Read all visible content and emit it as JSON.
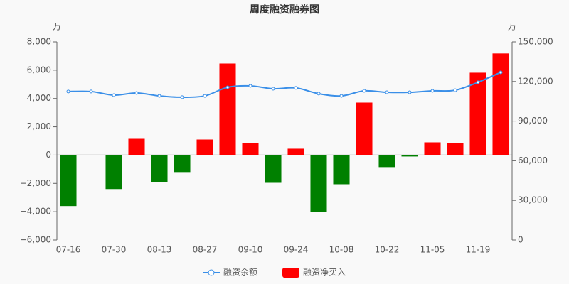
{
  "chart_data": {
    "type": "bar_line",
    "title": "周度融资融券图",
    "y_unit": "万",
    "y2_unit": "万",
    "categories": [
      "07-16",
      null,
      "07-30",
      null,
      "08-13",
      null,
      "08-27",
      null,
      "09-10",
      null,
      "09-24",
      null,
      "10-08",
      null,
      "10-22",
      null,
      "11-05",
      null,
      "11-19",
      null
    ],
    "series": [
      {
        "name": "融资余额",
        "type": "line",
        "axis": "y2",
        "color": "#3a8fe8",
        "values": [
          112400,
          112400,
          109700,
          111300,
          109100,
          108100,
          109100,
          115600,
          116700,
          114500,
          115100,
          110800,
          109100,
          112900,
          111800,
          111800,
          112900,
          113400,
          119400,
          126900
        ]
      },
      {
        "name": "融资净买入",
        "type": "bar",
        "color": "#ff0000",
        "negative_color": "#008000",
        "values": [
          -3600,
          -20,
          -2400,
          1150,
          -1900,
          -1200,
          1100,
          6470,
          850,
          -1960,
          450,
          -4010,
          -2060,
          3710,
          -850,
          -100,
          900,
          850,
          5820,
          7180
        ]
      }
    ],
    "ylim": [
      -6000,
      8000
    ],
    "yticks": [
      {
        "value": -6000,
        "label": "−6,000"
      },
      {
        "value": -4000,
        "label": "−4,000"
      },
      {
        "value": -2000,
        "label": "−2,000"
      },
      0,
      {
        "value": 2000,
        "label": "2,000"
      },
      {
        "value": 4000,
        "label": "4,000"
      },
      {
        "value": 6000,
        "label": "6,000"
      },
      {
        "value": 8000,
        "label": "8,000"
      }
    ],
    "y2lim": [
      0,
      150000
    ],
    "y2ticks": [
      0,
      {
        "value": 30000,
        "label": "30,000"
      },
      {
        "value": 60000,
        "label": "60,000"
      },
      {
        "value": 90000,
        "label": "90,000"
      },
      {
        "value": 120000,
        "label": "120,000"
      },
      {
        "value": 150000,
        "label": "150,000"
      }
    ],
    "grid": false,
    "legend": "bottom"
  }
}
